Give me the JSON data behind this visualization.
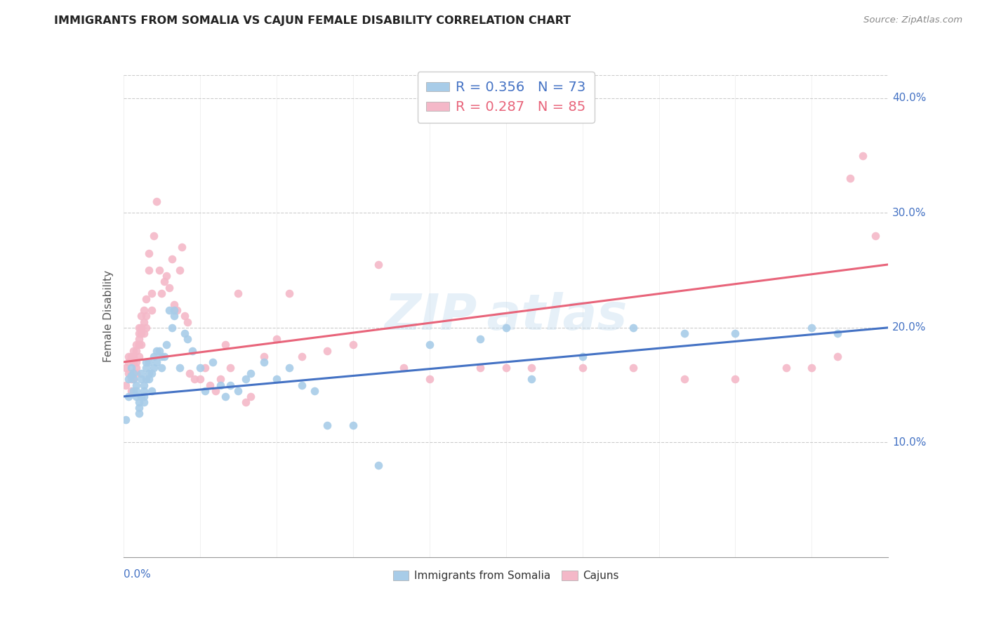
{
  "title": "IMMIGRANTS FROM SOMALIA VS CAJUN FEMALE DISABILITY CORRELATION CHART",
  "source": "Source: ZipAtlas.com",
  "ylabel": "Female Disability",
  "color_somalia": "#a8cce8",
  "color_cajun": "#f4b8c8",
  "color_line_somalia": "#4472c4",
  "color_line_cajun": "#e8647a",
  "color_ticks": "#4472c4",
  "xlim": [
    0.0,
    0.3
  ],
  "ylim": [
    0.0,
    0.42
  ],
  "ytick_vals": [
    0.1,
    0.2,
    0.3,
    0.4
  ],
  "background_color": "#ffffff",
  "somalia_scatter_x": [
    0.001,
    0.002,
    0.002,
    0.003,
    0.003,
    0.004,
    0.004,
    0.004,
    0.005,
    0.005,
    0.005,
    0.006,
    0.006,
    0.006,
    0.007,
    0.007,
    0.007,
    0.008,
    0.008,
    0.008,
    0.008,
    0.009,
    0.009,
    0.009,
    0.01,
    0.01,
    0.01,
    0.011,
    0.011,
    0.012,
    0.012,
    0.013,
    0.013,
    0.014,
    0.015,
    0.015,
    0.016,
    0.017,
    0.018,
    0.019,
    0.02,
    0.02,
    0.022,
    0.024,
    0.025,
    0.027,
    0.03,
    0.032,
    0.035,
    0.038,
    0.04,
    0.042,
    0.045,
    0.048,
    0.05,
    0.055,
    0.06,
    0.065,
    0.07,
    0.075,
    0.08,
    0.09,
    0.1,
    0.12,
    0.14,
    0.15,
    0.16,
    0.18,
    0.2,
    0.22,
    0.24,
    0.27,
    0.28
  ],
  "somalia_scatter_y": [
    0.12,
    0.14,
    0.155,
    0.165,
    0.158,
    0.16,
    0.155,
    0.145,
    0.15,
    0.145,
    0.14,
    0.13,
    0.125,
    0.135,
    0.14,
    0.155,
    0.16,
    0.15,
    0.145,
    0.14,
    0.135,
    0.165,
    0.17,
    0.155,
    0.17,
    0.16,
    0.155,
    0.16,
    0.145,
    0.165,
    0.175,
    0.17,
    0.18,
    0.18,
    0.175,
    0.165,
    0.175,
    0.185,
    0.215,
    0.2,
    0.215,
    0.21,
    0.165,
    0.195,
    0.19,
    0.18,
    0.165,
    0.145,
    0.17,
    0.15,
    0.14,
    0.15,
    0.145,
    0.155,
    0.16,
    0.17,
    0.155,
    0.165,
    0.15,
    0.145,
    0.115,
    0.115,
    0.08,
    0.185,
    0.19,
    0.2,
    0.155,
    0.175,
    0.2,
    0.195,
    0.195,
    0.2,
    0.195
  ],
  "cajun_scatter_x": [
    0.001,
    0.001,
    0.002,
    0.002,
    0.002,
    0.003,
    0.003,
    0.003,
    0.003,
    0.004,
    0.004,
    0.004,
    0.004,
    0.005,
    0.005,
    0.005,
    0.005,
    0.005,
    0.006,
    0.006,
    0.006,
    0.006,
    0.006,
    0.007,
    0.007,
    0.007,
    0.007,
    0.008,
    0.008,
    0.008,
    0.009,
    0.009,
    0.009,
    0.01,
    0.01,
    0.011,
    0.011,
    0.012,
    0.013,
    0.014,
    0.015,
    0.016,
    0.017,
    0.018,
    0.019,
    0.02,
    0.021,
    0.022,
    0.023,
    0.024,
    0.025,
    0.026,
    0.028,
    0.03,
    0.032,
    0.034,
    0.036,
    0.038,
    0.04,
    0.042,
    0.045,
    0.048,
    0.05,
    0.055,
    0.06,
    0.065,
    0.07,
    0.08,
    0.09,
    0.1,
    0.11,
    0.12,
    0.14,
    0.15,
    0.16,
    0.18,
    0.2,
    0.22,
    0.24,
    0.26,
    0.27,
    0.28,
    0.285,
    0.29,
    0.295
  ],
  "cajun_scatter_y": [
    0.15,
    0.165,
    0.16,
    0.175,
    0.17,
    0.175,
    0.16,
    0.155,
    0.145,
    0.17,
    0.155,
    0.175,
    0.18,
    0.17,
    0.185,
    0.18,
    0.165,
    0.16,
    0.2,
    0.195,
    0.19,
    0.185,
    0.175,
    0.21,
    0.2,
    0.195,
    0.185,
    0.215,
    0.205,
    0.195,
    0.225,
    0.21,
    0.2,
    0.265,
    0.25,
    0.23,
    0.215,
    0.28,
    0.31,
    0.25,
    0.23,
    0.24,
    0.245,
    0.235,
    0.26,
    0.22,
    0.215,
    0.25,
    0.27,
    0.21,
    0.205,
    0.16,
    0.155,
    0.155,
    0.165,
    0.15,
    0.145,
    0.155,
    0.185,
    0.165,
    0.23,
    0.135,
    0.14,
    0.175,
    0.19,
    0.23,
    0.175,
    0.18,
    0.185,
    0.255,
    0.165,
    0.155,
    0.165,
    0.165,
    0.165,
    0.165,
    0.165,
    0.155,
    0.155,
    0.165,
    0.165,
    0.175,
    0.33,
    0.35,
    0.28
  ],
  "line_somalia_x0": 0.0,
  "line_somalia_y0": 0.14,
  "line_somalia_x1": 0.3,
  "line_somalia_y1": 0.2,
  "line_cajun_x0": 0.0,
  "line_cajun_y0": 0.17,
  "line_cajun_x1": 0.3,
  "line_cajun_y1": 0.255
}
